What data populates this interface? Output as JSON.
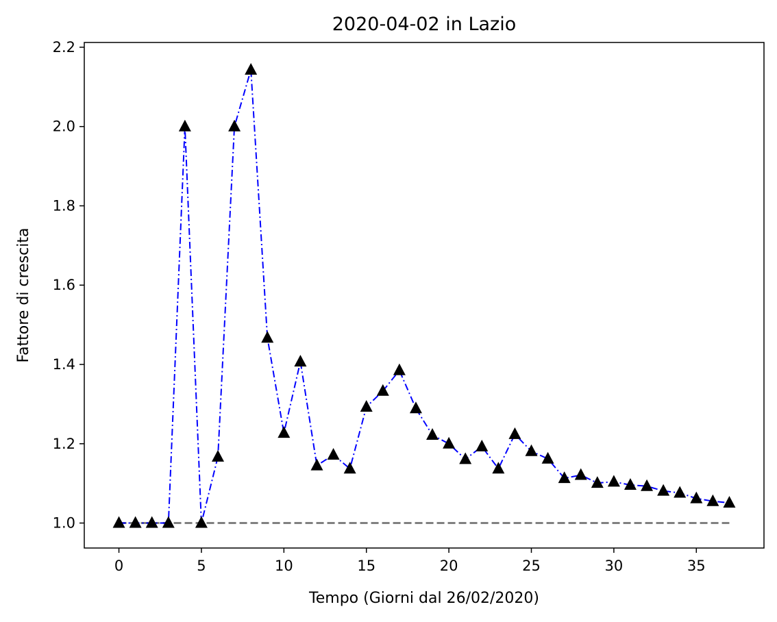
{
  "chart_data": {
    "type": "line",
    "title": "2020-04-02 in Lazio",
    "xlabel": "Tempo (Giorni dal 26/02/2020)",
    "ylabel": "Fattore di crescita",
    "xlim": [
      -2.1,
      39.1
    ],
    "ylim": [
      0.937,
      2.212
    ],
    "xticks": [
      0,
      5,
      10,
      15,
      20,
      25,
      30,
      35
    ],
    "yticks": [
      1.0,
      1.2,
      1.4,
      1.6,
      1.8,
      2.0,
      2.2
    ],
    "xtick_labels": [
      "0",
      "5",
      "10",
      "15",
      "20",
      "25",
      "30",
      "35"
    ],
    "ytick_labels": [
      "1.0",
      "1.2",
      "1.4",
      "1.6",
      "1.8",
      "2.0",
      "2.2"
    ],
    "grid": false,
    "series": [
      {
        "style": "dash-dot line with triangle markers",
        "line_color": "#0000ff",
        "marker_color": "#000000",
        "x": [
          0,
          1,
          2,
          3,
          4,
          5,
          6,
          7,
          8,
          9,
          10,
          11,
          12,
          13,
          14,
          15,
          16,
          17,
          18,
          19,
          20,
          21,
          22,
          23,
          24,
          25,
          26,
          27,
          28,
          29,
          30,
          31,
          32,
          33,
          34,
          35,
          36,
          37
        ],
        "values": [
          1.0,
          1.0,
          1.0,
          1.0,
          2.0,
          1.0,
          1.167,
          2.0,
          2.143,
          1.467,
          1.227,
          1.407,
          1.145,
          1.172,
          1.137,
          1.293,
          1.333,
          1.385,
          1.289,
          1.222,
          1.2,
          1.161,
          1.193,
          1.137,
          1.224,
          1.181,
          1.162,
          1.113,
          1.121,
          1.101,
          1.104,
          1.096,
          1.093,
          1.081,
          1.076,
          1.062,
          1.055,
          1.051
        ]
      },
      {
        "style": "dashed reference line",
        "line_color": "#808080",
        "x": [
          0,
          37
        ],
        "values": [
          1.0,
          1.0
        ]
      }
    ]
  }
}
